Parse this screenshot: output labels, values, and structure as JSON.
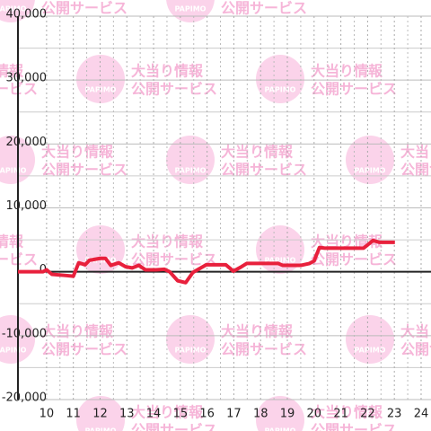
{
  "chart_data": {
    "type": "line",
    "watermark": {
      "logo": "PAPIMO",
      "line1": "大当り情報",
      "line2": "公開サービス"
    },
    "x": [
      8.93,
      9.87,
      10,
      10.2,
      10.77,
      11,
      11.2,
      11.44,
      11.6,
      12,
      12.2,
      12.4,
      12.7,
      12.95,
      13.2,
      13.45,
      13.7,
      14.1,
      14.4,
      14.6,
      14.9,
      15.2,
      15.47,
      15.97,
      16.7,
      16.98,
      17.25,
      17.48,
      18.66,
      18.83,
      19.5,
      19.83,
      20,
      20.2,
      20.4,
      21.85,
      22,
      22.2,
      22.45,
      23.02
    ],
    "series": [
      {
        "color": "#e8203c",
        "values": [
          0,
          0,
          300,
          -400,
          -600,
          -700,
          1400,
          1100,
          1800,
          2100,
          2100,
          1000,
          1400,
          800,
          600,
          1000,
          300,
          300,
          400,
          0,
          -1400,
          -1700,
          -100,
          1100,
          1100,
          100,
          700,
          1300,
          1300,
          1000,
          1000,
          1300,
          1700,
          3800,
          3700,
          3700,
          4200,
          4900,
          4600,
          4600
        ]
      }
    ],
    "xlim": [
      8.93,
      24.37
    ],
    "xticks": [
      10,
      11,
      12,
      13,
      14,
      15,
      16,
      17,
      18,
      19,
      20,
      21,
      22,
      23,
      24
    ],
    "ylim": [
      -20000,
      40000
    ],
    "yticks": [
      {
        "value": -20000,
        "label": "-20,000"
      },
      {
        "value": -10000,
        "label": "-10,000"
      },
      0,
      {
        "value": 10000,
        "label": "10,000"
      },
      {
        "value": 20000,
        "label": "20,000"
      },
      {
        "value": 30000,
        "label": "30,000"
      },
      {
        "value": 40000,
        "label": "40,000"
      }
    ],
    "grid": true
  }
}
